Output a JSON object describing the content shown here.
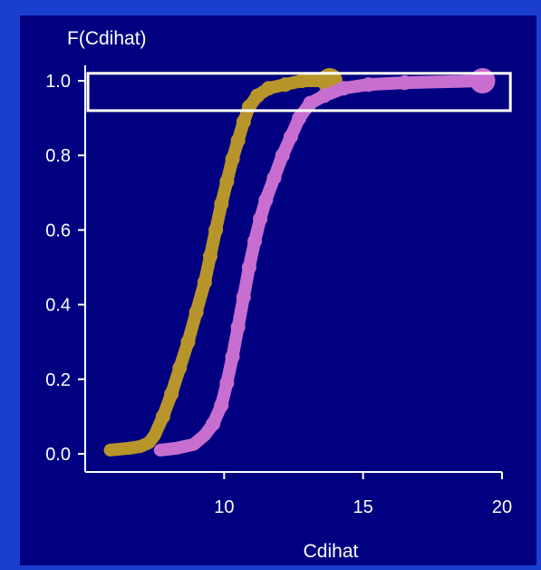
{
  "chart_data": {
    "type": "line",
    "ylabel": "F(Cdihat)",
    "xlabel": "Cdihat",
    "xlim": [
      5,
      20
    ],
    "ylim": [
      0,
      1
    ],
    "xticks": [
      10,
      15,
      20
    ],
    "yticks": [
      "0.0",
      "0.2",
      "0.4",
      "0.6",
      "0.8",
      "1.0"
    ],
    "grid": false,
    "background_color": "#000080",
    "frame_color": "#1a3fd0",
    "highlight_box": {
      "x_range": [
        5.1,
        20.3
      ],
      "y_range": [
        0.92,
        1.02
      ],
      "color": "#ffffff"
    },
    "series": [
      {
        "color": "#b8952a",
        "marker": "cross-then-disc",
        "points": [
          [
            5.9,
            0.01
          ],
          [
            6.6,
            0.015
          ],
          [
            7.0,
            0.02
          ],
          [
            7.3,
            0.03
          ],
          [
            7.5,
            0.05
          ],
          [
            7.8,
            0.1
          ],
          [
            8.1,
            0.16
          ],
          [
            8.4,
            0.23
          ],
          [
            8.7,
            0.3
          ],
          [
            9.0,
            0.38
          ],
          [
            9.3,
            0.46
          ],
          [
            9.5,
            0.53
          ],
          [
            9.7,
            0.6
          ],
          [
            9.9,
            0.67
          ],
          [
            10.1,
            0.73
          ],
          [
            10.3,
            0.79
          ],
          [
            10.5,
            0.84
          ],
          [
            10.7,
            0.89
          ],
          [
            10.9,
            0.93
          ],
          [
            11.2,
            0.96
          ],
          [
            11.6,
            0.98
          ],
          [
            12.2,
            0.99
          ],
          [
            12.8,
            1.0
          ],
          [
            13.8,
            1.0
          ]
        ]
      },
      {
        "color": "#c86ed0",
        "marker": "cross-then-disc",
        "points": [
          [
            7.7,
            0.01
          ],
          [
            8.3,
            0.015
          ],
          [
            8.9,
            0.025
          ],
          [
            9.3,
            0.05
          ],
          [
            9.6,
            0.08
          ],
          [
            9.9,
            0.13
          ],
          [
            10.1,
            0.19
          ],
          [
            10.3,
            0.26
          ],
          [
            10.5,
            0.34
          ],
          [
            10.7,
            0.42
          ],
          [
            10.9,
            0.5
          ],
          [
            11.1,
            0.57
          ],
          [
            11.3,
            0.63
          ],
          [
            11.5,
            0.68
          ],
          [
            11.8,
            0.74
          ],
          [
            12.1,
            0.8
          ],
          [
            12.4,
            0.85
          ],
          [
            12.7,
            0.9
          ],
          [
            13.1,
            0.94
          ],
          [
            13.6,
            0.96
          ],
          [
            14.3,
            0.98
          ],
          [
            15.2,
            0.99
          ],
          [
            16.5,
            0.995
          ],
          [
            19.3,
            1.0
          ]
        ]
      }
    ]
  }
}
